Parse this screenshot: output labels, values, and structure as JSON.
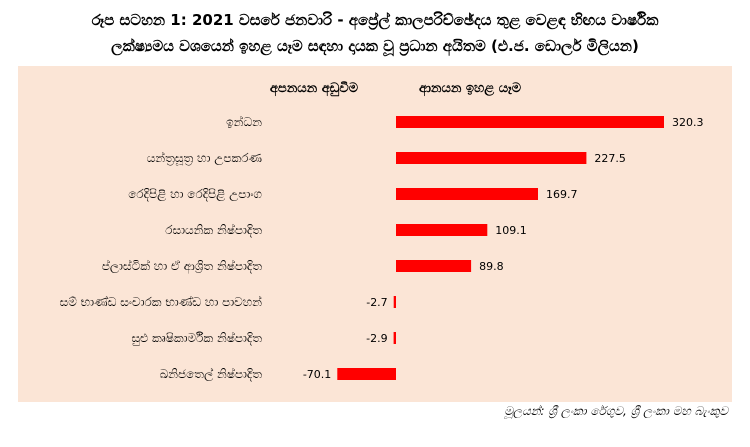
{
  "title_line1": "රූප සටහන 1: 2021 වසරේ ජනවාරි - අප්‍රේල් කාලපරිච්ඡේදය තුළ වෙළඳ භිඟය වාර්ෂික",
  "title_line2": "ලක්ෂ්‍යමය වශයෙන් ඉහළ යෑම සඳහා දායක වූ ප්‍රධාන අයිතම (එ.ජ. ඩොලර් මිලියන)",
  "source": "මූලයන්: ශ්‍රී ලංකා රේගුව, ශ්‍රී ලංකා මහ බැංකුව",
  "colors": {
    "bar": "#ff0000",
    "panel": "#fbe5d6"
  },
  "chart_data": {
    "type": "bar",
    "orientation": "horizontal",
    "header_negative": "අපනයන අඩුවීම",
    "header_positive": "ආනයන ඉහළ යෑම",
    "categories": [
      "ඉන්ධන",
      "යන්ත්‍රසූත්‍ර හා උපකරණ",
      "රෙදිපිළි හා රෙදිපිළි උපාංග",
      "රසායනික නිෂ්පාදිත",
      "ප්ලාස්ටික් හා ඒ ආශ්‍රිත නිෂ්පාදිත",
      "සම් භාණ්ඩ සංචාරක භාණ්ඩ හා පාවහන්",
      "සුළු කෘෂිකාර්මික නිෂ්පාදිත",
      "ඛනිජතෙල් නිෂ්පාදිත"
    ],
    "values": [
      320.3,
      227.5,
      169.7,
      109.1,
      89.8,
      -2.7,
      -2.9,
      -70.1
    ],
    "value_labels": [
      "320.3",
      "227.5",
      "169.7",
      "109.1",
      "89.8",
      "-2.7",
      "-2.9",
      "-70.1"
    ]
  }
}
